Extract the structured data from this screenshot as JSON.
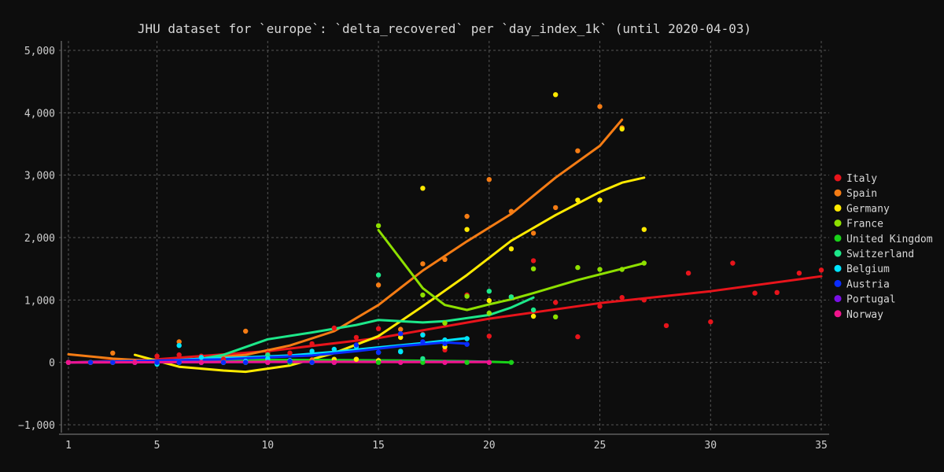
{
  "chart_data": {
    "type": "scatter",
    "title": "JHU dataset for `europe`: `delta_recovered` per `day_index_1k` (until 2020-04-03)",
    "xlabel": "",
    "ylabel": "",
    "xlim": [
      1,
      35
    ],
    "ylim": [
      -1000,
      5000
    ],
    "x_ticks": [
      1,
      5,
      10,
      15,
      20,
      25,
      30,
      35
    ],
    "y_ticks": [
      -1000,
      0,
      1000,
      2000,
      3000,
      4000,
      5000
    ],
    "x_tick_labels": [
      "1",
      "5",
      "10",
      "15",
      "20",
      "25",
      "30",
      "35"
    ],
    "y_tick_labels": [
      "−1,000",
      "0",
      "1,000",
      "2,000",
      "3,000",
      "4,000",
      "5,000"
    ],
    "grid": true,
    "legend_position": "right",
    "series": [
      {
        "name": "Italy",
        "color": "#e8141b",
        "points": [
          [
            1,
            0
          ],
          [
            2,
            0
          ],
          [
            3,
            0
          ],
          [
            4,
            0
          ],
          [
            5,
            100
          ],
          [
            6,
            120
          ],
          [
            7,
            100
          ],
          [
            8,
            50
          ],
          [
            9,
            20
          ],
          [
            10,
            150
          ],
          [
            11,
            150
          ],
          [
            12,
            300
          ],
          [
            13,
            550
          ],
          [
            14,
            400
          ],
          [
            15,
            540
          ],
          [
            16,
            400
          ],
          [
            17,
            450
          ],
          [
            18,
            200
          ],
          [
            19,
            1080
          ],
          [
            20,
            420
          ],
          [
            21,
            1050
          ],
          [
            22,
            1630
          ],
          [
            23,
            960
          ],
          [
            24,
            410
          ],
          [
            25,
            900
          ],
          [
            26,
            1040
          ],
          [
            27,
            1000
          ],
          [
            28,
            590
          ],
          [
            29,
            1430
          ],
          [
            30,
            650
          ],
          [
            31,
            1590
          ],
          [
            32,
            1110
          ],
          [
            33,
            1120
          ],
          [
            34,
            1430
          ],
          [
            35,
            1480
          ]
        ],
        "trend": [
          [
            1,
            0
          ],
          [
            5,
            50
          ],
          [
            10,
            180
          ],
          [
            15,
            390
          ],
          [
            20,
            700
          ],
          [
            25,
            950
          ],
          [
            30,
            1140
          ],
          [
            35,
            1380
          ]
        ]
      },
      {
        "name": "Spain",
        "color": "#f57c14",
        "points": [
          [
            1,
            0
          ],
          [
            2,
            0
          ],
          [
            3,
            150
          ],
          [
            4,
            0
          ],
          [
            5,
            0
          ],
          [
            6,
            330
          ],
          [
            7,
            0
          ],
          [
            8,
            0
          ],
          [
            9,
            500
          ],
          [
            10,
            30
          ],
          [
            11,
            30
          ],
          [
            12,
            40
          ],
          [
            13,
            0
          ],
          [
            14,
            50
          ],
          [
            15,
            1240
          ],
          [
            16,
            530
          ],
          [
            17,
            1580
          ],
          [
            18,
            1650
          ],
          [
            19,
            2340
          ],
          [
            20,
            2930
          ],
          [
            21,
            2420
          ],
          [
            22,
            2070
          ],
          [
            23,
            2480
          ],
          [
            24,
            3390
          ],
          [
            25,
            4100
          ],
          [
            26,
            3760
          ]
        ],
        "trend": [
          [
            1,
            130
          ],
          [
            3,
            60
          ],
          [
            5,
            20
          ],
          [
            7,
            60
          ],
          [
            9,
            120
          ],
          [
            11,
            270
          ],
          [
            13,
            500
          ],
          [
            15,
            920
          ],
          [
            17,
            1470
          ],
          [
            19,
            1940
          ],
          [
            21,
            2380
          ],
          [
            23,
            2960
          ],
          [
            25,
            3470
          ],
          [
            26,
            3890
          ]
        ]
      },
      {
        "name": "Germany",
        "color": "#ffea00",
        "points": [
          [
            1,
            0
          ],
          [
            2,
            0
          ],
          [
            3,
            0
          ],
          [
            4,
            0
          ],
          [
            5,
            0
          ],
          [
            6,
            0
          ],
          [
            7,
            0
          ],
          [
            8,
            0
          ],
          [
            9,
            0
          ],
          [
            10,
            0
          ],
          [
            11,
            0
          ],
          [
            12,
            0
          ],
          [
            13,
            50
          ],
          [
            14,
            50
          ],
          [
            15,
            30
          ],
          [
            16,
            400
          ],
          [
            17,
            2790
          ],
          [
            18,
            250
          ],
          [
            19,
            2130
          ],
          [
            20,
            990
          ],
          [
            21,
            1820
          ],
          [
            22,
            740
          ],
          [
            23,
            4290
          ],
          [
            24,
            2600
          ],
          [
            25,
            2600
          ],
          [
            26,
            3740
          ],
          [
            27,
            2130
          ]
        ],
        "trend": [
          [
            4,
            120
          ],
          [
            6,
            -70
          ],
          [
            8,
            -130
          ],
          [
            9,
            -150
          ],
          [
            11,
            -50
          ],
          [
            13,
            150
          ],
          [
            15,
            420
          ],
          [
            17,
            900
          ],
          [
            19,
            1400
          ],
          [
            21,
            1950
          ],
          [
            23,
            2360
          ],
          [
            25,
            2730
          ],
          [
            26,
            2880
          ],
          [
            27,
            2960
          ]
        ]
      },
      {
        "name": "France",
        "color": "#8ee000",
        "points": [
          [
            15,
            2190
          ],
          [
            17,
            1080
          ],
          [
            18,
            630
          ],
          [
            19,
            1060
          ],
          [
            20,
            790
          ],
          [
            21,
            1050
          ],
          [
            22,
            1500
          ],
          [
            23,
            730
          ],
          [
            24,
            1520
          ],
          [
            25,
            1490
          ],
          [
            26,
            1490
          ],
          [
            27,
            1590
          ]
        ],
        "trend": [
          [
            15,
            2120
          ],
          [
            17,
            1190
          ],
          [
            18,
            920
          ],
          [
            19,
            840
          ],
          [
            20,
            930
          ],
          [
            21,
            1010
          ],
          [
            22,
            1110
          ],
          [
            24,
            1320
          ],
          [
            26,
            1500
          ],
          [
            27,
            1590
          ]
        ]
      },
      {
        "name": "United Kingdom",
        "color": "#19d119",
        "points": [
          [
            1,
            0
          ],
          [
            3,
            0
          ],
          [
            5,
            0
          ],
          [
            7,
            0
          ],
          [
            9,
            0
          ],
          [
            11,
            0
          ],
          [
            13,
            0
          ],
          [
            15,
            0
          ],
          [
            17,
            0
          ],
          [
            19,
            0
          ],
          [
            21,
            0
          ]
        ],
        "trend": [
          [
            1,
            0
          ],
          [
            4,
            20
          ],
          [
            8,
            40
          ],
          [
            12,
            40
          ],
          [
            16,
            30
          ],
          [
            19,
            20
          ],
          [
            21,
            0
          ]
        ]
      },
      {
        "name": "Switzerland",
        "color": "#1de88a",
        "points": [
          [
            6,
            0
          ],
          [
            10,
            120
          ],
          [
            12,
            0
          ],
          [
            15,
            1400
          ],
          [
            16,
            180
          ],
          [
            17,
            60
          ],
          [
            18,
            350
          ],
          [
            19,
            380
          ],
          [
            20,
            1140
          ],
          [
            21,
            1050
          ],
          [
            22,
            840
          ]
        ],
        "trend": [
          [
            6,
            0
          ],
          [
            8,
            120
          ],
          [
            10,
            370
          ],
          [
            12,
            480
          ],
          [
            14,
            600
          ],
          [
            15,
            680
          ],
          [
            17,
            640
          ],
          [
            18,
            660
          ],
          [
            20,
            760
          ],
          [
            21,
            880
          ],
          [
            22,
            1040
          ]
        ]
      },
      {
        "name": "Belgium",
        "color": "#00e5ff",
        "points": [
          [
            5,
            -30
          ],
          [
            6,
            270
          ],
          [
            7,
            80
          ],
          [
            8,
            0
          ],
          [
            9,
            20
          ],
          [
            10,
            60
          ],
          [
            11,
            30
          ],
          [
            12,
            180
          ],
          [
            13,
            210
          ],
          [
            14,
            250
          ],
          [
            15,
            160
          ],
          [
            16,
            170
          ],
          [
            17,
            440
          ],
          [
            18,
            360
          ],
          [
            19,
            380
          ]
        ],
        "trend": [
          [
            5,
            20
          ],
          [
            7,
            60
          ],
          [
            9,
            80
          ],
          [
            11,
            110
          ],
          [
            13,
            170
          ],
          [
            15,
            240
          ],
          [
            17,
            310
          ],
          [
            19,
            390
          ]
        ]
      },
      {
        "name": "Austria",
        "color": "#0a2cff",
        "points": [
          [
            1,
            0
          ],
          [
            2,
            0
          ],
          [
            3,
            0
          ],
          [
            4,
            0
          ],
          [
            5,
            0
          ],
          [
            6,
            0
          ],
          [
            7,
            0
          ],
          [
            8,
            0
          ],
          [
            9,
            0
          ],
          [
            10,
            0
          ],
          [
            11,
            20
          ],
          [
            12,
            0
          ],
          [
            13,
            0
          ],
          [
            14,
            280
          ],
          [
            15,
            160
          ],
          [
            16,
            460
          ],
          [
            17,
            330
          ],
          [
            18,
            300
          ],
          [
            19,
            290
          ]
        ],
        "trend": [
          [
            1,
            0
          ],
          [
            5,
            30
          ],
          [
            8,
            50
          ],
          [
            10,
            80
          ],
          [
            12,
            110
          ],
          [
            14,
            180
          ],
          [
            16,
            260
          ],
          [
            18,
            320
          ],
          [
            19,
            300
          ]
        ]
      },
      {
        "name": "Portugal",
        "color": "#7a10e6",
        "points": [
          [
            1,
            0
          ],
          [
            4,
            0
          ],
          [
            7,
            0
          ],
          [
            10,
            0
          ],
          [
            13,
            0
          ],
          [
            16,
            0
          ],
          [
            18,
            0
          ],
          [
            20,
            0
          ]
        ],
        "trend": [
          [
            1,
            0
          ],
          [
            8,
            5
          ],
          [
            14,
            10
          ],
          [
            20,
            10
          ]
        ]
      },
      {
        "name": "Norway",
        "color": "#f0148c",
        "points": [
          [
            1,
            0
          ],
          [
            4,
            0
          ],
          [
            7,
            0
          ],
          [
            10,
            0
          ],
          [
            13,
            0
          ],
          [
            16,
            0
          ],
          [
            18,
            0
          ],
          [
            20,
            0
          ]
        ],
        "trend": [
          [
            1,
            0
          ],
          [
            6,
            5
          ],
          [
            12,
            10
          ],
          [
            16,
            5
          ],
          [
            20,
            5
          ]
        ]
      }
    ]
  }
}
